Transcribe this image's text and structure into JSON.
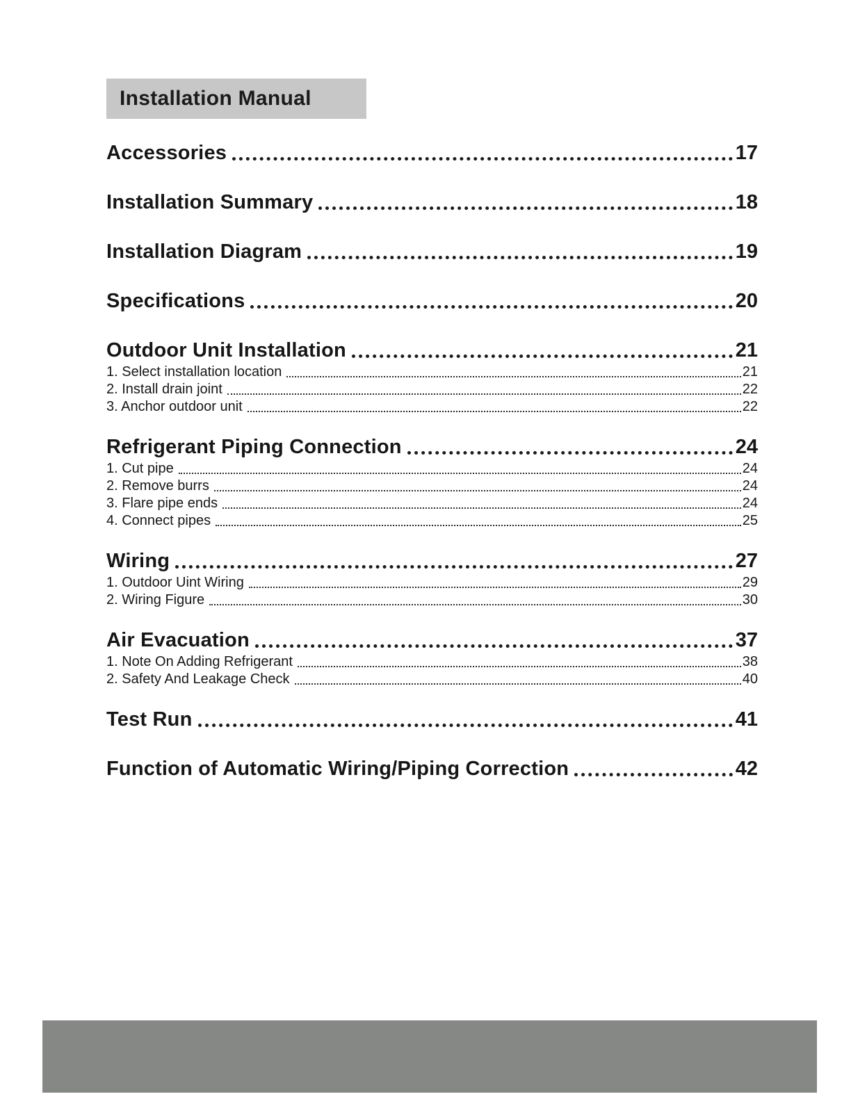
{
  "header": {
    "title": "Installation Manual"
  },
  "toc": [
    {
      "title": "Accessories",
      "page": "17",
      "subs": []
    },
    {
      "title": "Installation Summary",
      "page": "18",
      "subs": []
    },
    {
      "title": "Installation Diagram",
      "page": "19",
      "subs": []
    },
    {
      "title": "Specifications",
      "page": "20",
      "subs": []
    },
    {
      "title": "Outdoor Unit Installation",
      "page": "21",
      "subs": [
        {
          "title": "1. Select installation location",
          "page": "21"
        },
        {
          "title": "2. Install drain joint",
          "page": "22"
        },
        {
          "title": "3. Anchor outdoor unit",
          "page": "22"
        }
      ]
    },
    {
      "title": "Refrigerant Piping Connection",
      "page": "24",
      "subs": [
        {
          "title": "1. Cut pipe",
          "page": "24"
        },
        {
          "title": "2. Remove burrs",
          "page": "24"
        },
        {
          "title": "3. Flare pipe ends",
          "page": "24"
        },
        {
          "title": "4. Connect pipes",
          "page": "25"
        }
      ]
    },
    {
      "title": "Wiring",
      "page": "27",
      "subs": [
        {
          "title": "1. Outdoor Uint Wiring",
          "page": "29"
        },
        {
          "title": "2. Wiring Figure",
          "page": "30"
        }
      ]
    },
    {
      "title": "Air Evacuation",
      "page": "37",
      "subs": [
        {
          "title": "1. Note On Adding Refrigerant",
          "page": "38"
        },
        {
          "title": "2. Safety And Leakage Check",
          "page": "40"
        }
      ]
    },
    {
      "title": "Test Run",
      "page": "41",
      "subs": []
    },
    {
      "title": "Function of Automatic Wiring/Piping Correction",
      "page": "42",
      "subs": []
    }
  ],
  "colors": {
    "header_bg": "#c6c7c6",
    "footer_bg": "#868886",
    "text": "#161616"
  }
}
